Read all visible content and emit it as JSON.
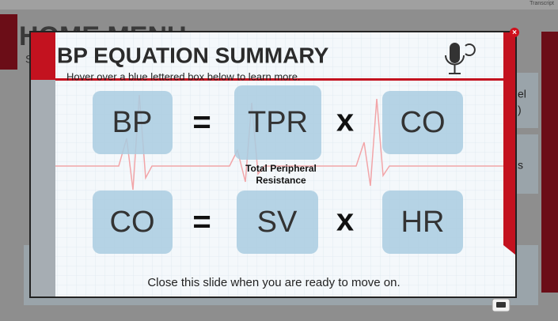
{
  "background": {
    "transcript": "Transcript",
    "menu_title": "HOME MENU",
    "fragments": [
      "S",
      "el",
      ")",
      "s"
    ]
  },
  "modal": {
    "title": "BP EQUATION SUMMARY",
    "instruction": "Hover over a blue lettered box below to learn more.",
    "close": "×",
    "equations": [
      {
        "left": "BP",
        "equals": "=",
        "middle": "TPR",
        "times": "x",
        "right": "CO"
      },
      {
        "left": "CO",
        "equals": "=",
        "middle": "SV",
        "times": "x",
        "right": "HR"
      }
    ],
    "annotation": [
      "Total Peripheral",
      "Resistance"
    ],
    "footer": "Close this slide when you are ready to move on."
  }
}
